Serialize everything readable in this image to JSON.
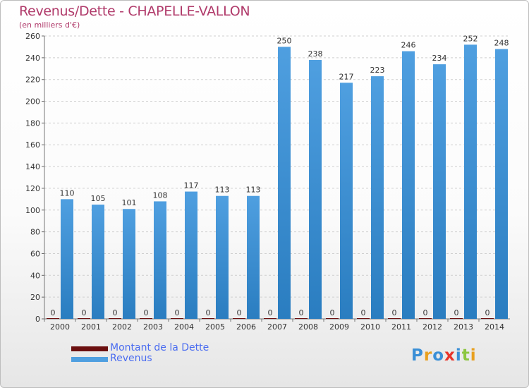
{
  "title": "Revenus/Dette - CHAPELLE-VALLON",
  "subtitle": "(en milliers d'€)",
  "colors": {
    "debt": "#6b0f0f",
    "revenue": "#4f9fe0",
    "revenue_dark": "#2a7dc0",
    "title": "#b03a6a",
    "legend_text": "#4a6cf0"
  },
  "logo": {
    "text": "Proxiti",
    "colors": [
      "#3a8fd6",
      "#e8a020",
      "#3a8fd6",
      "#e8342a",
      "#3a8fd6",
      "#8cc63f",
      "#e8a020"
    ]
  },
  "legend": [
    {
      "label": "Montant de la Dette",
      "color": "#6b0f0f"
    },
    {
      "label": "Revenus",
      "color": "#4f9fe0"
    }
  ],
  "chart_data": {
    "type": "bar",
    "categories": [
      "2000",
      "2001",
      "2002",
      "2003",
      "2004",
      "2005",
      "2006",
      "2007",
      "2008",
      "2009",
      "2010",
      "2011",
      "2012",
      "2013",
      "2014"
    ],
    "series": [
      {
        "name": "Montant de la Dette",
        "values": [
          0,
          0,
          0,
          0,
          0,
          0,
          0,
          0,
          0,
          0,
          0,
          0,
          0,
          0,
          0
        ]
      },
      {
        "name": "Revenus",
        "values": [
          110,
          105,
          101,
          108,
          117,
          113,
          113,
          250,
          238,
          217,
          223,
          246,
          234,
          252,
          248
        ]
      }
    ],
    "ylim": [
      0,
      260
    ],
    "yticks": [
      0,
      20,
      40,
      60,
      80,
      100,
      120,
      140,
      160,
      180,
      200,
      220,
      240,
      260
    ],
    "grid": true,
    "legend_position": "bottom-left"
  }
}
